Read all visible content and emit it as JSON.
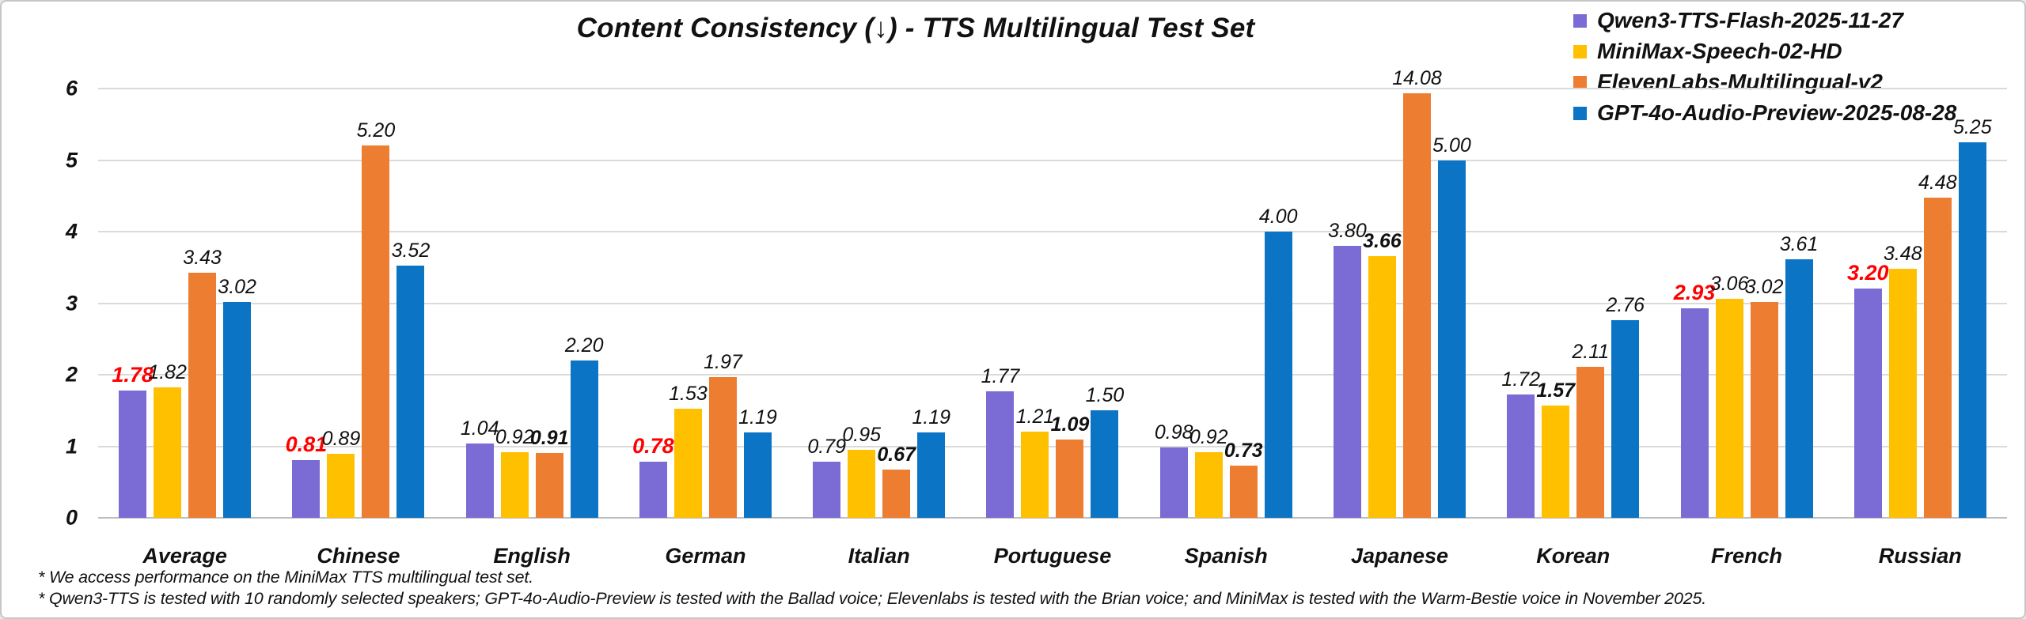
{
  "title": "Content Consistency (↓) - TTS Multilingual Test Set",
  "chart_data": {
    "type": "bar",
    "title": "Content Consistency (↓) - TTS Multilingual Test Set",
    "categories": [
      "Average",
      "Chinese",
      "English",
      "German",
      "Italian",
      "Portuguese",
      "Spanish",
      "Japanese",
      "Korean",
      "French",
      "Russian"
    ],
    "series": [
      {
        "name": "Qwen3-TTS-Flash-2025-11-27",
        "color": "#7A6BD5",
        "values": [
          1.78,
          0.81,
          1.04,
          0.78,
          0.79,
          1.77,
          0.98,
          3.8,
          1.72,
          2.93,
          3.2
        ]
      },
      {
        "name": "MiniMax-Speech-02-HD",
        "color": "#FFC000",
        "values": [
          1.82,
          0.89,
          0.92,
          1.53,
          0.95,
          1.21,
          0.92,
          3.66,
          1.57,
          3.06,
          3.48
        ]
      },
      {
        "name": "ElevenLabs-Multilingual-v2",
        "color": "#ED7D31",
        "values": [
          3.43,
          5.2,
          0.91,
          1.97,
          0.67,
          1.09,
          0.73,
          14.08,
          2.11,
          3.02,
          4.48
        ]
      },
      {
        "name": "GPT-4o-Audio-Preview-2025-08-28",
        "color": "#0B74C4",
        "values": [
          3.02,
          3.52,
          2.2,
          1.19,
          1.19,
          1.5,
          4.0,
          5.0,
          2.76,
          3.61,
          5.25
        ]
      }
    ],
    "ylim": [
      0,
      6
    ],
    "yticks": [
      0,
      1,
      2,
      3,
      4,
      5,
      6
    ],
    "grid": true,
    "legend_position": "top-right",
    "value_labels": "above bars, two decimals, italic",
    "highlight_rule": "lowest value in each category is bold; shown in red when it belongs to Qwen3-TTS-Flash",
    "highlight_colors": {
      "best_qwen": "#FF0000",
      "best_other": "#000000"
    },
    "clipped_bar_note": "Japanese / ElevenLabs-Multilingual-v2 bar (14.08) is clipped at the top of the plot area"
  },
  "footnotes": [
    "* We access performance on the MiniMax TTS multilingual test set.",
    "* Qwen3-TTS is tested with 10 randomly selected speakers; GPT-4o-Audio-Preview is tested with the Ballad voice; Elevenlabs is tested with the Brian voice; and MiniMax is tested with the Warm-Bestie voice in November 2025."
  ]
}
